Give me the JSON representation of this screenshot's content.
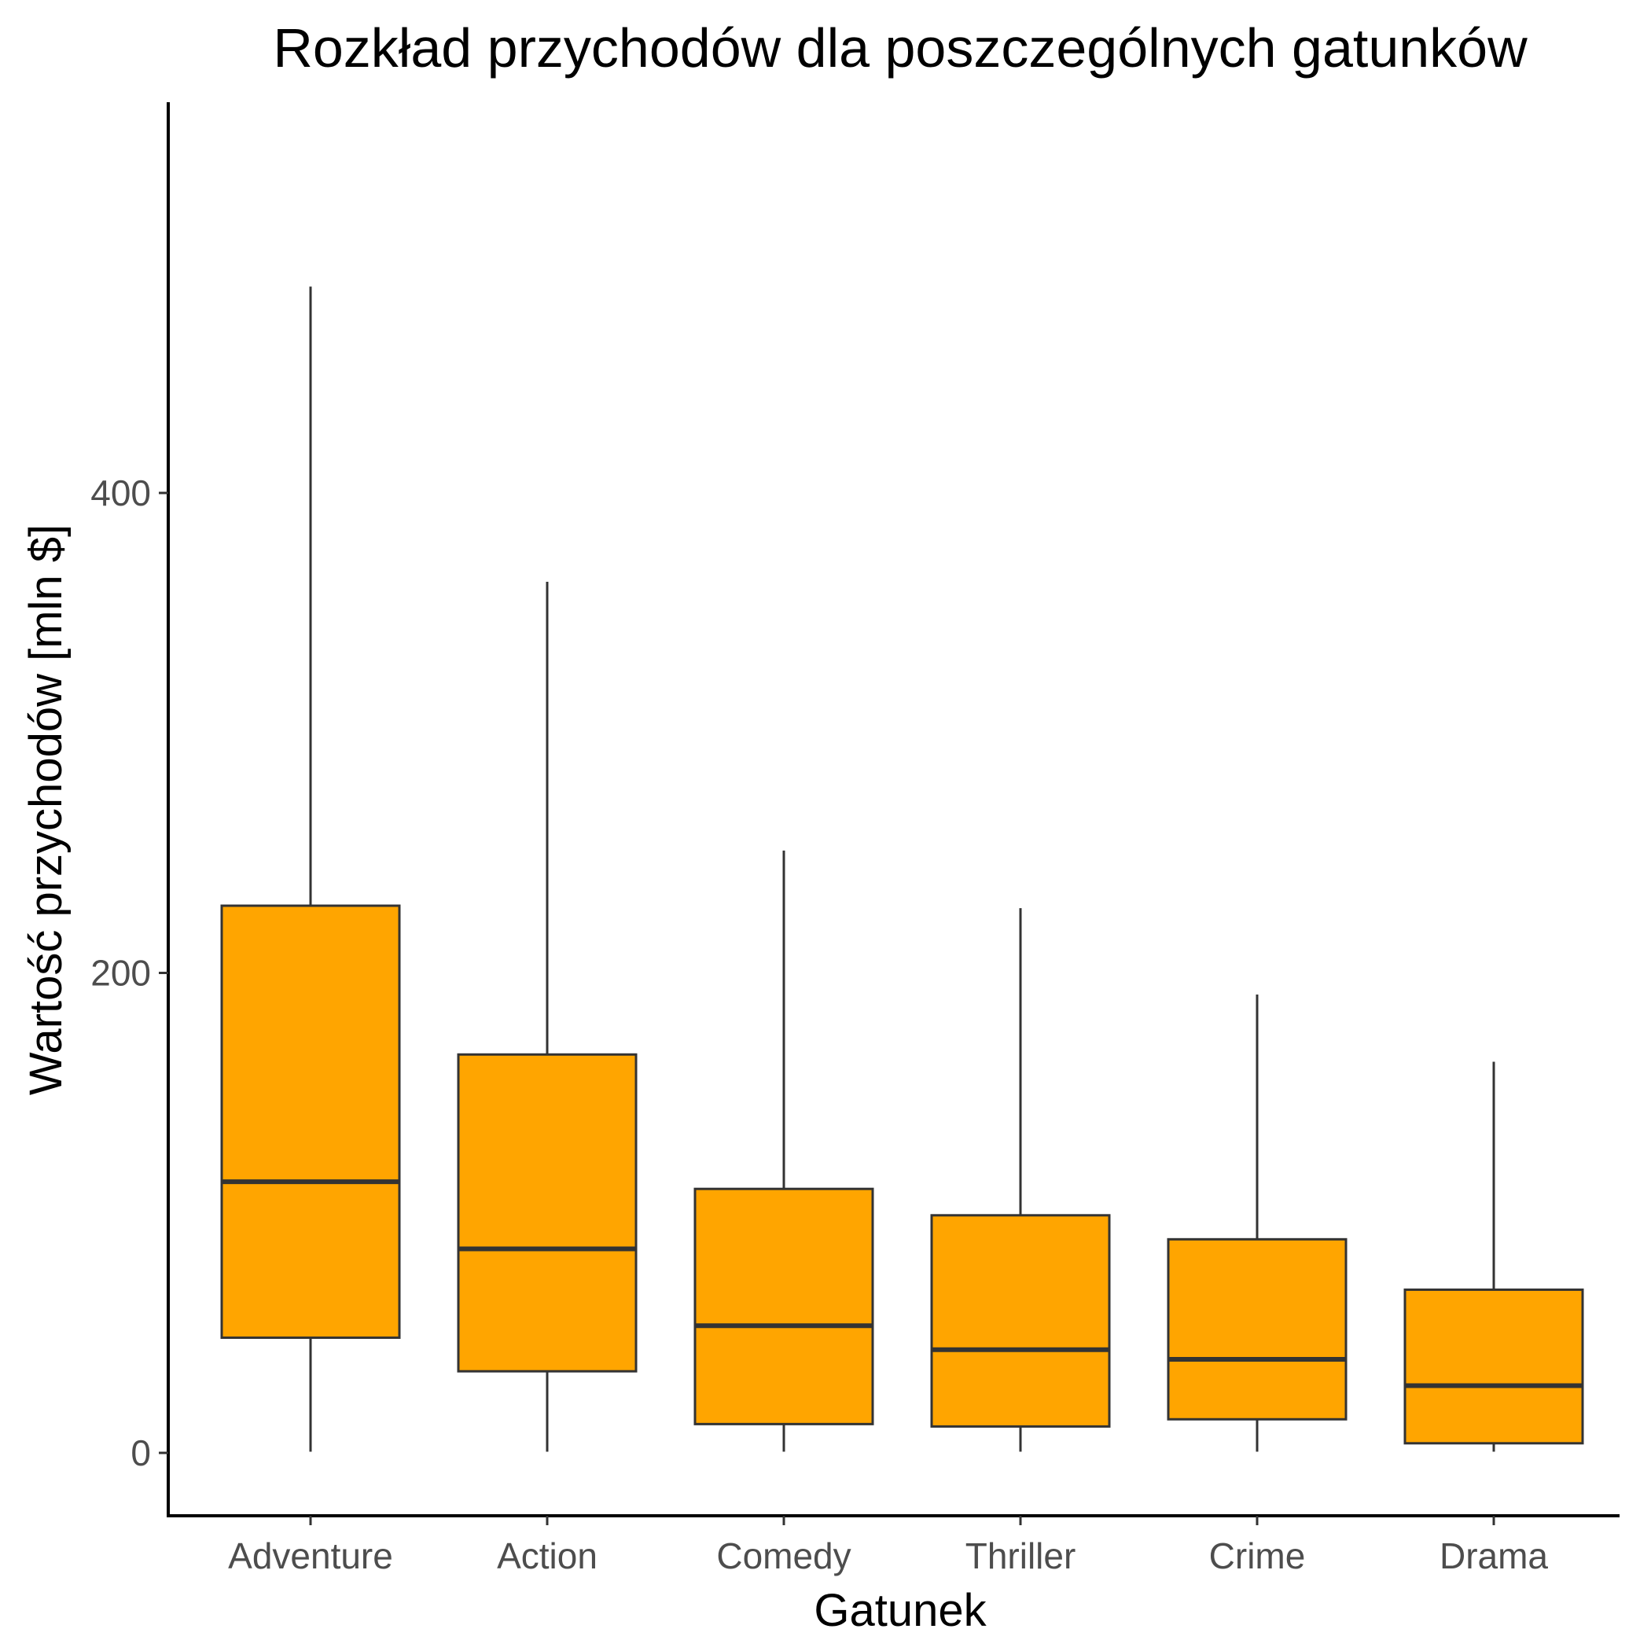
{
  "chart_data": {
    "type": "boxplot",
    "title": "Rozkład przychodów dla poszczególnych gatunków",
    "xlabel": "Gatunek",
    "ylabel": "Wartość przychodów [mln $]",
    "categories": [
      "Adventure",
      "Action",
      "Comedy",
      "Thriller",
      "Crime",
      "Drama"
    ],
    "boxes": [
      {
        "category": "Adventure",
        "min": 0.5,
        "q1": 48,
        "median": 113,
        "q3": 228,
        "max": 486
      },
      {
        "category": "Action",
        "min": 0.5,
        "q1": 34,
        "median": 85,
        "q3": 166,
        "max": 363
      },
      {
        "category": "Comedy",
        "min": 0.5,
        "q1": 12,
        "median": 53,
        "q3": 110,
        "max": 251
      },
      {
        "category": "Thriller",
        "min": 0.5,
        "q1": 11,
        "median": 43,
        "q3": 99,
        "max": 227
      },
      {
        "category": "Crime",
        "min": 0.5,
        "q1": 14,
        "median": 39,
        "q3": 89,
        "max": 191
      },
      {
        "category": "Drama",
        "min": 0.5,
        "q1": 4,
        "median": 28,
        "q3": 68,
        "max": 163
      }
    ],
    "yticks": [
      0,
      200,
      400
    ],
    "ylim": [
      -26,
      563
    ],
    "fill_color": "#FFA500",
    "line_color": "#333333",
    "grid": false
  }
}
